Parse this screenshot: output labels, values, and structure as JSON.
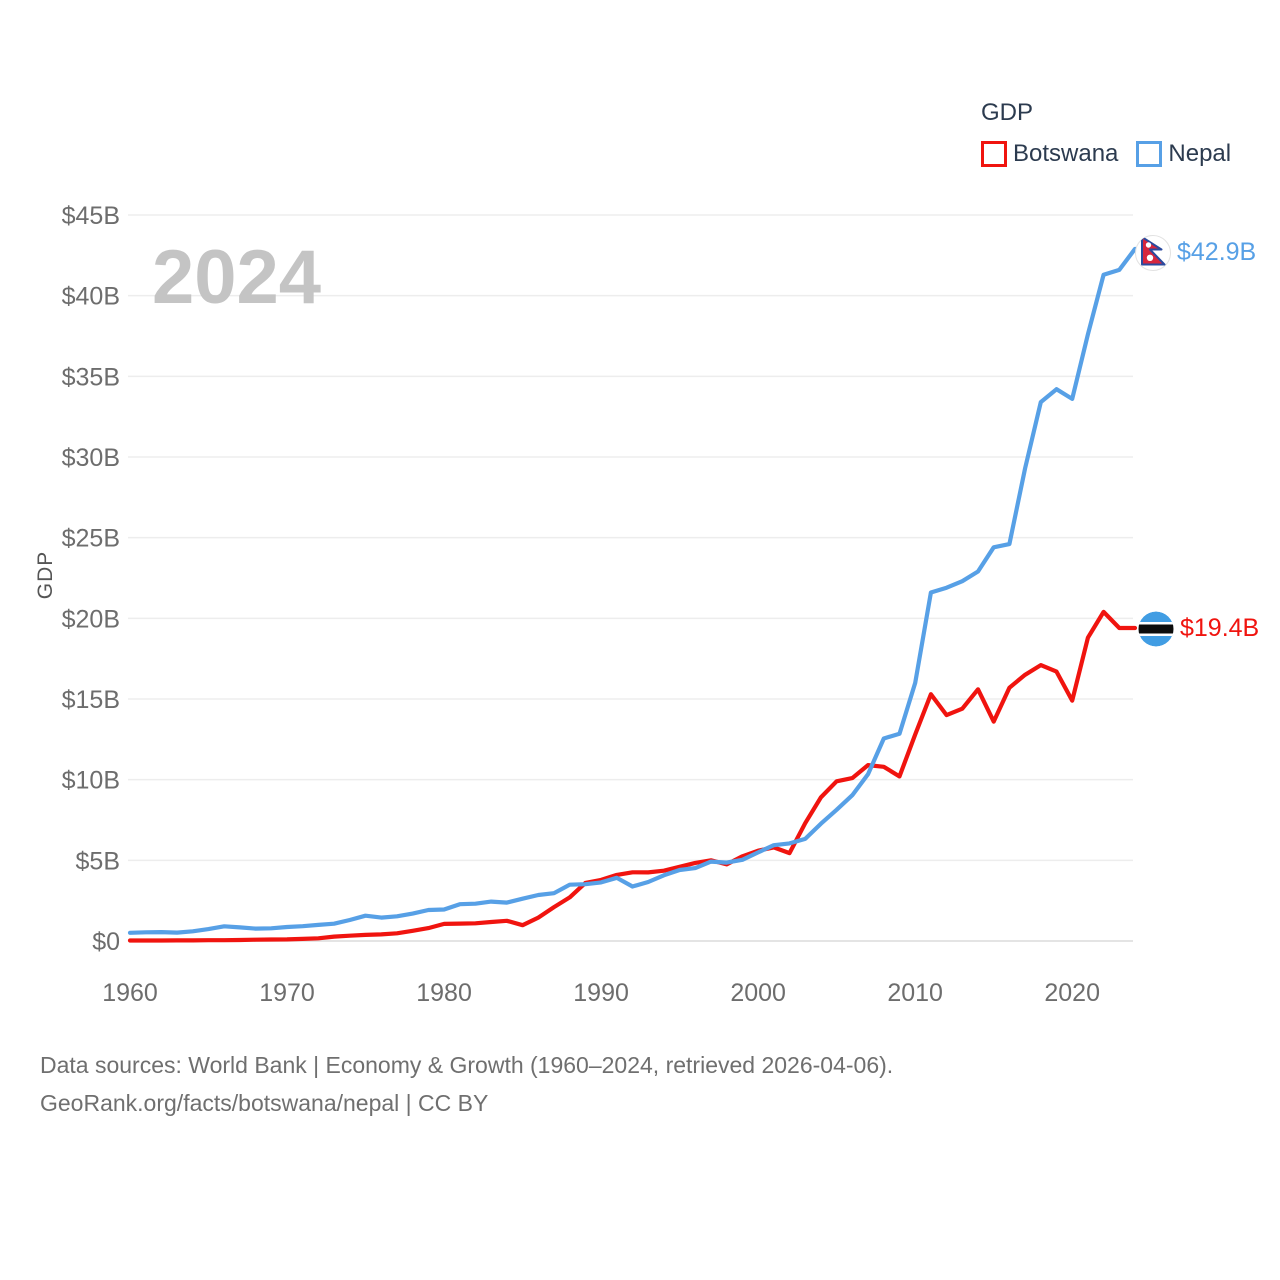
{
  "watermark": "2024",
  "legend": {
    "title": "GDP",
    "series": [
      {
        "label": "Botswana",
        "color": "#f0140f"
      },
      {
        "label": "Nepal",
        "color": "#57a0e6"
      }
    ]
  },
  "y_axis": {
    "title": "GDP",
    "tick_labels": [
      "$0",
      "$5B",
      "$10B",
      "$15B",
      "$20B",
      "$25B",
      "$30B",
      "$35B",
      "$40B",
      "$45B"
    ],
    "tick_values": [
      0,
      5,
      10,
      15,
      20,
      25,
      30,
      35,
      40,
      45
    ]
  },
  "x_axis": {
    "tick_labels": [
      "1960",
      "1970",
      "1980",
      "1990",
      "2000",
      "2010",
      "2020"
    ]
  },
  "end_labels": {
    "nepal": {
      "text": "$42.9B",
      "flag": "nepal-flag-icon"
    },
    "botswana": {
      "text": "$19.4B",
      "flag": "botswana-flag-icon"
    }
  },
  "footer": {
    "line1": "Data sources: World Bank | Economy & Growth (1960–2024, retrieved 2026-04-06).",
    "line2": "GeoRank.org/facts/botswana/nepal | CC BY"
  },
  "chart_data": {
    "type": "line",
    "title": "GDP",
    "xlabel": "",
    "ylabel": "GDP",
    "x_start": 1960,
    "x_end": 2024,
    "x_step": 1,
    "ylim": [
      0,
      45
    ],
    "y_unit": "billion USD",
    "grid": true,
    "legend_position": "top-right",
    "series": [
      {
        "name": "Botswana",
        "color": "#f0140f",
        "end_value_label": "$19.4B",
        "values": [
          0.03,
          0.03,
          0.03,
          0.04,
          0.04,
          0.05,
          0.05,
          0.06,
          0.08,
          0.09,
          0.1,
          0.13,
          0.17,
          0.27,
          0.33,
          0.38,
          0.41,
          0.48,
          0.63,
          0.8,
          1.06,
          1.08,
          1.1,
          1.18,
          1.25,
          0.98,
          1.45,
          2.1,
          2.7,
          3.6,
          3.79,
          4.1,
          4.26,
          4.25,
          4.36,
          4.6,
          4.84,
          5.0,
          4.75,
          5.25,
          5.6,
          5.8,
          5.45,
          7.3,
          8.9,
          9.9,
          10.1,
          10.9,
          10.8,
          10.2,
          12.8,
          15.3,
          14.0,
          14.4,
          15.6,
          13.6,
          15.7,
          16.5,
          17.1,
          16.7,
          14.9,
          18.8,
          20.4,
          19.4,
          19.4
        ]
      },
      {
        "name": "Nepal",
        "color": "#57a0e6",
        "end_value_label": "$42.9B",
        "values": [
          0.51,
          0.54,
          0.55,
          0.52,
          0.6,
          0.74,
          0.91,
          0.84,
          0.77,
          0.79,
          0.87,
          0.92,
          1.0,
          1.07,
          1.3,
          1.57,
          1.45,
          1.53,
          1.7,
          1.92,
          1.95,
          2.28,
          2.31,
          2.44,
          2.38,
          2.62,
          2.85,
          2.96,
          3.49,
          3.52,
          3.63,
          3.92,
          3.38,
          3.66,
          4.07,
          4.4,
          4.52,
          4.92,
          4.86,
          5.03,
          5.49,
          5.94,
          6.05,
          6.33,
          7.27,
          8.13,
          9.04,
          10.33,
          12.55,
          12.85,
          16.0,
          21.6,
          21.9,
          22.3,
          22.9,
          24.4,
          24.6,
          29.3,
          33.4,
          34.2,
          33.6,
          37.6,
          41.3,
          41.6,
          42.9
        ]
      }
    ]
  }
}
